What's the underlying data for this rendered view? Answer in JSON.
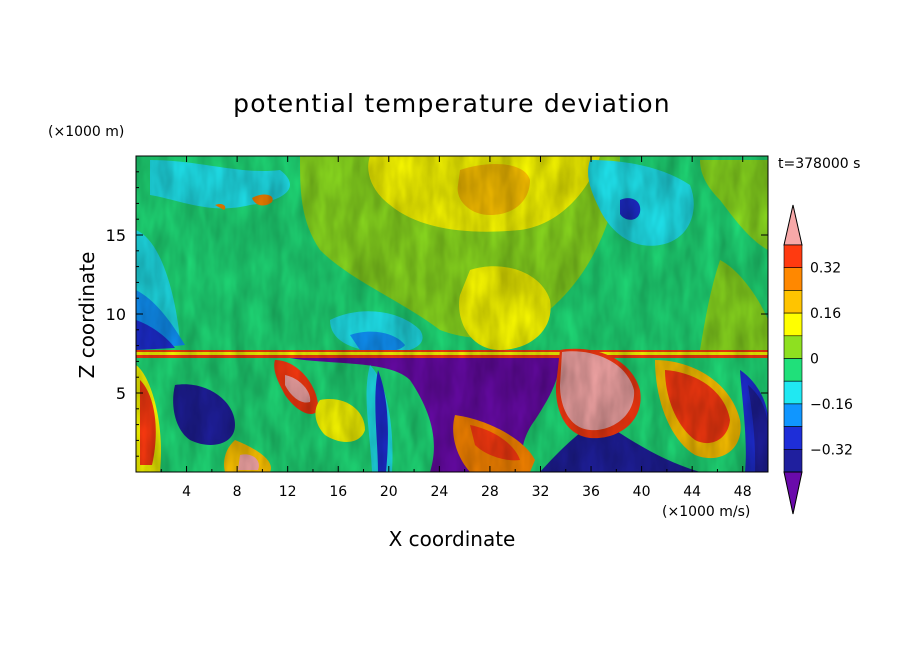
{
  "chart_data": {
    "type": "heatmap",
    "title": "potential temperature deviation",
    "xlabel": "X coordinate",
    "ylabel": "Z coordinate",
    "x_unit": "(×1000 m/s)",
    "y_unit": "(×1000 m)",
    "time_label": "t=378000 s",
    "xlim": [
      0,
      50
    ],
    "ylim": [
      0,
      20
    ],
    "x_ticks": [
      "4",
      "8",
      "12",
      "16",
      "20",
      "24",
      "28",
      "32",
      "36",
      "40",
      "44",
      "48"
    ],
    "y_ticks": [
      "5",
      "10",
      "15"
    ],
    "colorbar": {
      "tick_labels": [
        "0.32",
        "0.16",
        "0",
        "−0.16",
        "−0.32"
      ],
      "levels": [
        -0.4,
        -0.32,
        -0.24,
        -0.16,
        -0.08,
        0,
        0.08,
        0.16,
        0.24,
        0.32,
        0.4
      ],
      "colors": [
        "#6a0aab",
        "#1f1f9e",
        "#1e2ed8",
        "#1096ff",
        "#20e8f2",
        "#20e07a",
        "#8ee020",
        "#ffff00",
        "#ffc400",
        "#ff8800",
        "#ff3a10",
        "#f7a8a8"
      ],
      "extend": "both"
    }
  }
}
